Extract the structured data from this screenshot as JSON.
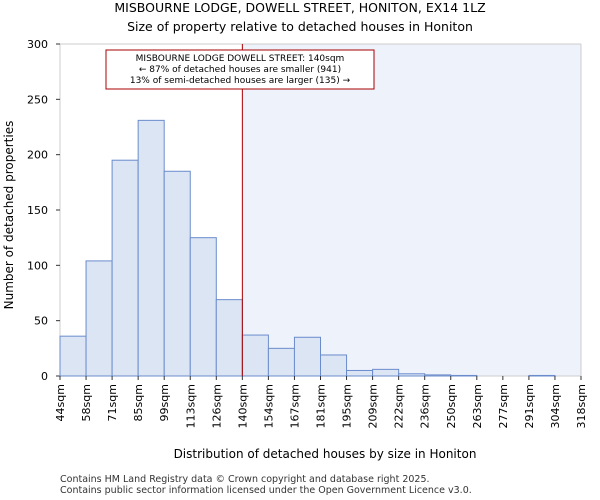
{
  "chart_data": {
    "type": "bar",
    "title_line1": "MISBOURNE LODGE, DOWELL STREET, HONITON, EX14 1LZ",
    "title_line2": "Size of property relative to detached houses in Honiton",
    "xlabel": "Distribution of detached houses by size in Honiton",
    "ylabel": "Number of detached properties",
    "ylim": [
      0,
      300
    ],
    "yticks": [
      0,
      50,
      100,
      150,
      200,
      250,
      300
    ],
    "bin_edges": [
      "44sqm",
      "58sqm",
      "71sqm",
      "85sqm",
      "99sqm",
      "113sqm",
      "126sqm",
      "140sqm",
      "154sqm",
      "167sqm",
      "181sqm",
      "195sqm",
      "209sqm",
      "222sqm",
      "236sqm",
      "250sqm",
      "263sqm",
      "277sqm",
      "291sqm",
      "304sqm",
      "318sqm"
    ],
    "values": [
      36,
      104,
      195,
      231,
      185,
      125,
      69,
      37,
      25,
      35,
      19,
      5,
      6,
      2,
      1,
      0.5,
      0,
      0,
      0.5,
      0
    ],
    "marker_bin_index": 7,
    "annotation": {
      "line1": "MISBOURNE LODGE DOWELL STREET: 140sqm",
      "line2": "← 87% of detached houses are smaller (941)",
      "line3": "13% of semi-detached houses are larger (135) →"
    },
    "colors": {
      "bar_fill": "#dbe5f4",
      "bar_stroke": "#6b8ccc",
      "highlight_bg": "#eef2fb",
      "marker": "#aa0000"
    }
  },
  "footer": {
    "line1": "Contains HM Land Registry data © Crown copyright and database right 2025.",
    "line2": "Contains public sector information licensed under the Open Government Licence v3.0."
  }
}
